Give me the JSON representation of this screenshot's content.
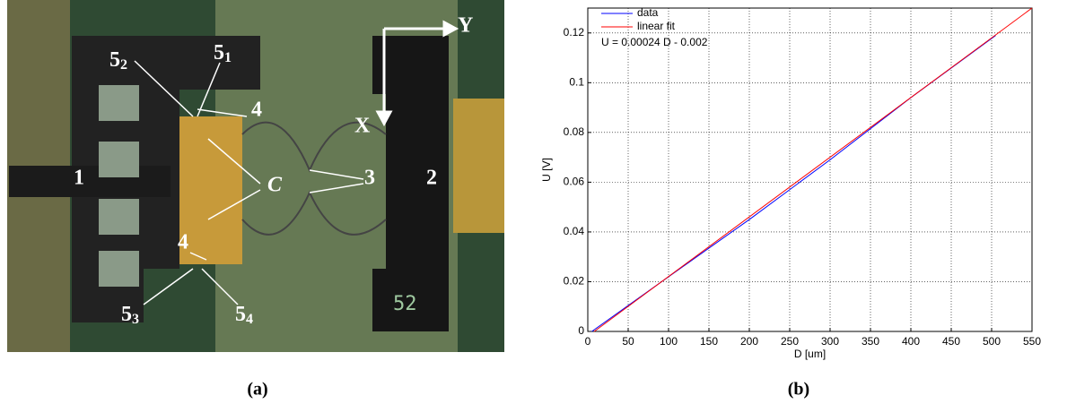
{
  "panel_a": {
    "labels": [
      {
        "main": "5",
        "sub": "2"
      },
      {
        "main": "5",
        "sub": "1"
      },
      {
        "main": "4"
      },
      {
        "main": "1"
      },
      {
        "main": "C"
      },
      {
        "main": "3"
      },
      {
        "main": "2"
      },
      {
        "main": "4"
      },
      {
        "main": "5",
        "sub": "3"
      },
      {
        "main": "5",
        "sub": "4"
      },
      {
        "main": "X"
      },
      {
        "main": "Y"
      },
      {
        "main": "52"
      }
    ],
    "caption": "(a)"
  },
  "panel_b_caption": "(b)",
  "chart_data": {
    "type": "line",
    "xlabel": "D [um]",
    "ylabel": "U [V]",
    "annotation": "U = 0.00024 D - 0.002",
    "annotation_color": "#ff0000",
    "xlim": [
      0,
      550
    ],
    "ylim": [
      0,
      0.13
    ],
    "xticks": [
      0,
      50,
      100,
      150,
      200,
      250,
      300,
      350,
      400,
      450,
      500,
      550
    ],
    "yticks": [
      0,
      0.02,
      0.04,
      0.06,
      0.08,
      0.1,
      0.12
    ],
    "grid": true,
    "legend": "upper-left",
    "series": [
      {
        "name": "data",
        "color": "#0000ff",
        "x": [
          5,
          100,
          200,
          300,
          400,
          505
        ],
        "values": [
          0,
          0.022,
          0.045,
          0.069,
          0.094,
          0.119
        ]
      },
      {
        "name": "linear fit",
        "color": "#ff0000",
        "x": [
          8,
          550
        ],
        "values": [
          0,
          0.13
        ]
      }
    ]
  }
}
